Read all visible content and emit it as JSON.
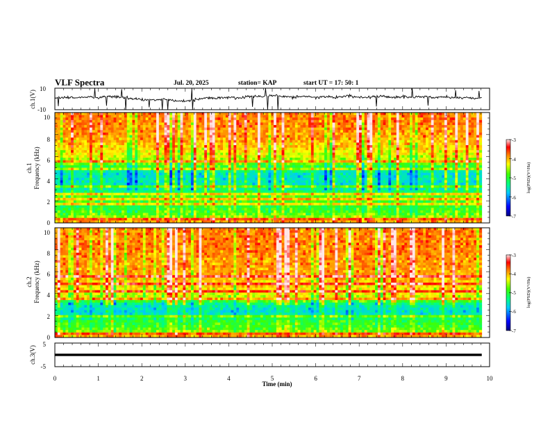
{
  "header": {
    "title": "VLF Spectra",
    "date": "Jul. 20, 2025",
    "station": "station= KAP",
    "start": "start UT = 17: 50: 1"
  },
  "colors": {
    "background": "#ffffff",
    "axis": "#000000",
    "trace": "#000000"
  },
  "chart_data": [
    {
      "type": "line",
      "id": "ch1-waveform",
      "ylabel": "ch.1(V)",
      "ylim": [
        -10,
        10
      ],
      "yticks": [
        "10",
        "-10"
      ],
      "xlim": [
        0,
        10
      ],
      "x_extent_min": 9.82,
      "series": [
        {
          "name": "ch.1",
          "x": [
            0.0,
            0.25,
            0.5,
            0.75,
            1.0,
            1.25,
            1.5,
            1.75,
            2.0,
            2.25,
            2.5,
            2.75,
            3.0,
            3.25,
            3.5,
            3.75,
            4.0,
            4.25,
            4.5,
            4.75,
            5.0,
            5.25,
            5.5,
            5.75,
            6.0,
            6.25,
            6.5,
            6.75,
            7.0,
            7.25,
            7.5,
            7.75,
            8.0,
            8.25,
            8.5,
            8.75,
            9.0,
            9.25,
            9.5,
            9.75
          ],
          "values": [
            1.0,
            1.5,
            1.2,
            2.0,
            1.0,
            2.5,
            1.5,
            0.5,
            -0.5,
            -1.0,
            0.0,
            -1.5,
            -2.0,
            -0.5,
            0.5,
            1.0,
            1.5,
            0.5,
            3.0,
            2.0,
            3.5,
            2.5,
            1.5,
            2.5,
            1.0,
            2.0,
            1.5,
            3.0,
            1.0,
            2.0,
            2.5,
            1.0,
            2.0,
            1.5,
            2.5,
            1.0,
            2.0,
            1.0,
            1.5,
            0.5
          ]
        }
      ]
    },
    {
      "type": "heatmap",
      "id": "ch1-spectrogram",
      "ylabel": "ch.1\nFrequency (kHz)",
      "ylim": [
        0,
        10
      ],
      "yticks": [
        "0",
        "2",
        "4",
        "6",
        "8",
        "10"
      ],
      "xlim": [
        0,
        10
      ],
      "x_extent_min": 9.82,
      "colorbar": {
        "label": "log(PSD)(V²/Hz)",
        "range": [
          -7,
          -3
        ],
        "ticks": [
          "-3",
          "-4",
          "-5",
          "-6",
          "-7"
        ]
      },
      "band_levels": {
        "freq_khz": [
          0,
          0.5,
          1.0,
          1.5,
          2.0,
          2.5,
          3.0,
          3.5,
          4.0,
          4.5,
          5.0,
          5.5,
          6.0,
          7.0,
          8.0,
          9.0,
          10.0
        ],
        "log_psd": [
          -3.8,
          -4.6,
          -4.9,
          -5.0,
          -4.8,
          -4.8,
          -5.4,
          -5.5,
          -5.5,
          -5.6,
          -5.1,
          -4.7,
          -4.4,
          -4.1,
          -3.9,
          -3.8,
          -3.8
        ]
      },
      "tonal_lines_khz": [
        0.35,
        1.7,
        2.2,
        2.6,
        3.3,
        4.95,
        5.6
      ]
    },
    {
      "type": "heatmap",
      "id": "ch2-spectrogram",
      "ylabel": "ch.2\nFrequency (kHz)",
      "ylim": [
        0,
        10
      ],
      "yticks": [
        "0",
        "2",
        "4",
        "6",
        "8",
        "10"
      ],
      "xlim": [
        0,
        10
      ],
      "x_extent_min": 9.82,
      "colorbar": {
        "label": "log(PSD)(V²/Hz)",
        "range": [
          -7,
          -3
        ],
        "ticks": [
          "-3",
          "-4",
          "-5",
          "-6",
          "-7"
        ]
      },
      "band_levels": {
        "freq_khz": [
          0,
          0.5,
          1.0,
          1.5,
          2.0,
          2.5,
          3.0,
          3.5,
          4.0,
          4.5,
          5.0,
          5.5,
          6.0,
          7.0,
          8.0,
          9.0,
          10.0
        ],
        "log_psd": [
          -3.8,
          -4.6,
          -4.9,
          -5.0,
          -5.5,
          -5.6,
          -5.4,
          -4.6,
          -4.3,
          -4.2,
          -4.1,
          -4.0,
          -3.9,
          -3.9,
          -3.8,
          -3.8,
          -3.8
        ]
      },
      "tonal_lines_khz": [
        0.4,
        1.9,
        3.5,
        4.2,
        4.9,
        5.5
      ]
    },
    {
      "type": "line",
      "id": "ch3-waveform",
      "ylabel": "ch.3(V)",
      "ylim": [
        -5,
        5
      ],
      "yticks": [
        "5",
        "-5"
      ],
      "xlim": [
        0,
        10
      ],
      "x_extent_min": 9.82,
      "series": [
        {
          "name": "ch.3",
          "x": [
            0,
            9.82
          ],
          "values": [
            0,
            0
          ],
          "band_halfwidth": 0.5
        }
      ]
    }
  ],
  "xaxis": {
    "label": "Time (min)",
    "ticks": [
      "0",
      "1",
      "2",
      "3",
      "4",
      "5",
      "6",
      "7",
      "8",
      "9",
      "10"
    ]
  }
}
